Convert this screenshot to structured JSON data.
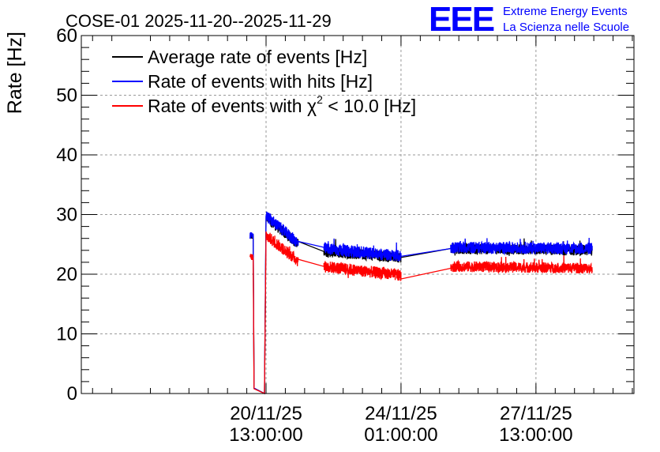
{
  "header": {
    "title": "COSE-01 2025-11-20--2025-11-29",
    "logo": "EEE",
    "logo_line1": "Extreme Energy Events",
    "logo_line2": "La Scienza nelle Scuole"
  },
  "colors": {
    "average": "#000000",
    "hits": "#0000ff",
    "chi2": "#ff0000",
    "logo": "#0000ff",
    "grid": "#999999"
  },
  "chart_data": {
    "type": "line",
    "title": "COSE-01 2025-11-20--2025-11-29",
    "xlabel": "",
    "ylabel": "Rate [Hz]",
    "ylim": [
      0,
      60
    ],
    "xlim_hours": [
      -115,
      229
    ],
    "yticks": [
      "0",
      "10",
      "20",
      "30",
      "40",
      "50",
      "60"
    ],
    "xticks": [
      {
        "h": 0,
        "date": "20/11/25",
        "time": "13:00:00"
      },
      {
        "h": 84,
        "date": "24/11/25",
        "time": "01:00:00"
      },
      {
        "h": 168,
        "date": "27/11/25",
        "time": "13:00:00"
      }
    ],
    "legend": {
      "placement": "top-left",
      "entries": [
        {
          "key": "avg",
          "pre": "Average rate of events [Hz]",
          "sup": "",
          "post": ""
        },
        {
          "key": "hits",
          "pre": "Rate of events with hits [Hz]",
          "sup": "",
          "post": ""
        },
        {
          "key": "chi2",
          "pre": "Rate of events with χ",
          "sup": "2",
          "post": " < 10.0 [Hz]"
        }
      ]
    },
    "series": [
      {
        "name": "Average rate of events [Hz]",
        "key": "avg",
        "segments": [
          {
            "x0": -10,
            "x1": -8,
            "start": 26.4,
            "end": 26.3,
            "noise": 0.5
          },
          {
            "x0": -8,
            "x1": -7.5,
            "start": 26.3,
            "end": 0.9,
            "noise": 0
          },
          {
            "x0": -7.5,
            "x1": -1,
            "start": 0.9,
            "end": 0,
            "noise": 0
          },
          {
            "x0": -1,
            "x1": 0,
            "start": 0,
            "end": 29.5,
            "noise": 0
          },
          {
            "x0": 0,
            "x1": 20,
            "start": 29.5,
            "end": 25.0,
            "noise": 0.9
          },
          {
            "x0": 20,
            "x1": 36,
            "start": 25.5,
            "end": 23.8,
            "noise": 0
          },
          {
            "x0": 36,
            "x1": 84,
            "start": 23.8,
            "end": 22.8,
            "noise": 0.9
          },
          {
            "x0": 84,
            "x1": 115,
            "start": 22.8,
            "end": 24.3,
            "noise": 0
          },
          {
            "x0": 115,
            "x1": 203,
            "start": 24.3,
            "end": 24.0,
            "noise": 0.9
          }
        ]
      },
      {
        "name": "Rate of events with hits [Hz]",
        "key": "hits",
        "segments": [
          {
            "x0": -10,
            "x1": -8,
            "start": 26.5,
            "end": 26.4,
            "noise": 0.6
          },
          {
            "x0": -8,
            "x1": -7.5,
            "start": 26.4,
            "end": 0.9,
            "noise": 0
          },
          {
            "x0": -7.5,
            "x1": -1,
            "start": 0.9,
            "end": 0,
            "noise": 0
          },
          {
            "x0": -1,
            "x1": 0,
            "start": 0,
            "end": 29.8,
            "noise": 0
          },
          {
            "x0": 0,
            "x1": 20,
            "start": 29.8,
            "end": 25.2,
            "noise": 1.0
          },
          {
            "x0": 20,
            "x1": 36,
            "start": 25.5,
            "end": 24.5,
            "noise": 0
          },
          {
            "x0": 36,
            "x1": 84,
            "start": 24.3,
            "end": 23.0,
            "noise": 1.0
          },
          {
            "x0": 84,
            "x1": 115,
            "start": 23.0,
            "end": 24.3,
            "noise": 0
          },
          {
            "x0": 115,
            "x1": 203,
            "start": 24.5,
            "end": 24.3,
            "noise": 1.0
          }
        ]
      },
      {
        "name": "Rate of events with χ2 < 10.0 [Hz]",
        "key": "chi2",
        "segments": [
          {
            "x0": -10,
            "x1": -8,
            "start": 23.0,
            "end": 22.8,
            "noise": 0.6
          },
          {
            "x0": -8,
            "x1": -7.5,
            "start": 22.8,
            "end": 0.8,
            "noise": 0
          },
          {
            "x0": -7.5,
            "x1": -1,
            "start": 0.8,
            "end": 0,
            "noise": 0
          },
          {
            "x0": -1,
            "x1": 0,
            "start": 0,
            "end": 26.5,
            "noise": 0
          },
          {
            "x0": 0,
            "x1": 20,
            "start": 26.5,
            "end": 22.2,
            "noise": 1.0
          },
          {
            "x0": 20,
            "x1": 36,
            "start": 22.5,
            "end": 21.3,
            "noise": 0
          },
          {
            "x0": 36,
            "x1": 84,
            "start": 21.3,
            "end": 19.8,
            "noise": 1.0
          },
          {
            "x0": 84,
            "x1": 115,
            "start": 19.2,
            "end": 21.0,
            "noise": 0
          },
          {
            "x0": 115,
            "x1": 203,
            "start": 21.3,
            "end": 21.0,
            "noise": 0.9
          }
        ]
      }
    ]
  }
}
